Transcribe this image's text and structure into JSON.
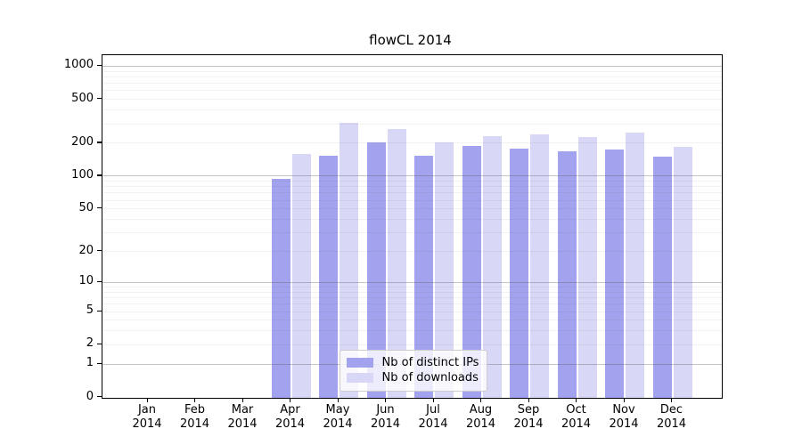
{
  "title": "flowCL 2014",
  "colors": {
    "background": "#ffffff",
    "axis": "#000000",
    "text": "#000000",
    "series_ips": "#a2a2ee",
    "series_downloads": "#d8d8f6",
    "grid_major": "#c6c6c6",
    "grid_minor": "#ededed",
    "legend_border": "#cccccc"
  },
  "chart_data": {
    "type": "bar",
    "title": "flowCL 2014",
    "xlabel": "",
    "ylabel": "",
    "categories": [
      {
        "month": "Jan",
        "year": "2014"
      },
      {
        "month": "Feb",
        "year": "2014"
      },
      {
        "month": "Mar",
        "year": "2014"
      },
      {
        "month": "Apr",
        "year": "2014"
      },
      {
        "month": "May",
        "year": "2014"
      },
      {
        "month": "Jun",
        "year": "2014"
      },
      {
        "month": "Jul",
        "year": "2014"
      },
      {
        "month": "Aug",
        "year": "2014"
      },
      {
        "month": "Sep",
        "year": "2014"
      },
      {
        "month": "Oct",
        "year": "2014"
      },
      {
        "month": "Nov",
        "year": "2014"
      },
      {
        "month": "Dec",
        "year": "2014"
      }
    ],
    "series": [
      {
        "name": "Nb of distinct IPs",
        "key": "distinct-ips",
        "color": "#a2a2ee",
        "values": [
          0,
          0,
          0,
          95,
          154,
          203,
          153,
          188,
          177,
          170,
          174,
          152
        ]
      },
      {
        "name": "Nb of downloads",
        "key": "downloads",
        "color": "#d8d8f6",
        "values": [
          0,
          0,
          0,
          160,
          305,
          270,
          205,
          230,
          239,
          226,
          248,
          186
        ]
      }
    ],
    "y_axis": {
      "scale": "symlog (y proportional to ln(1+value))",
      "ticks": [
        1000,
        500,
        200,
        100,
        50,
        20,
        10,
        5,
        2,
        1,
        0
      ],
      "range": [
        0,
        1270
      ],
      "grid_major_values": [
        1,
        10,
        100,
        1000
      ],
      "grid_minor_rule": "n×10^k for n=2..9, k=0..2"
    },
    "legend": {
      "position": "inside-bottom-center",
      "entries": [
        "Nb of distinct IPs",
        "Nb of downloads"
      ]
    },
    "grid": true
  }
}
